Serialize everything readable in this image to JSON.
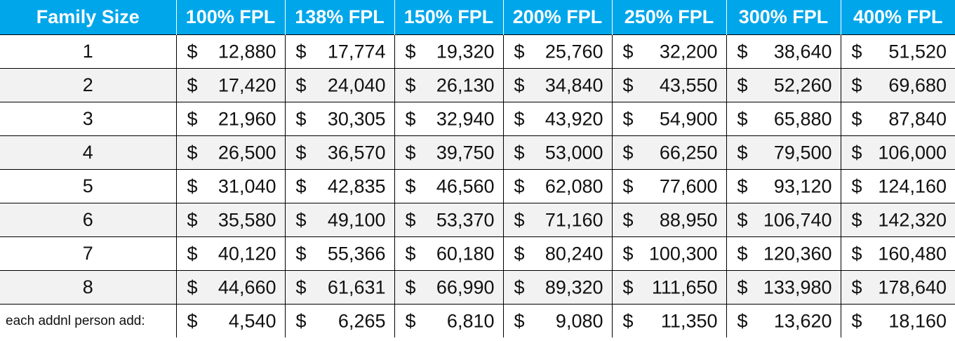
{
  "table": {
    "headers": [
      "Family Size",
      "100% FPL",
      "138% FPL",
      "150% FPL",
      "200% FPL",
      "250% FPL",
      "300% FPL",
      "400% FPL"
    ],
    "currency_symbol": "$",
    "header_bg": "#00a6ea",
    "band_bg": "#f2f2f2",
    "rows": [
      {
        "size": "1",
        "values": [
          "12,880",
          "17,774",
          "19,320",
          "25,760",
          "32,200",
          "38,640",
          "51,520"
        ]
      },
      {
        "size": "2",
        "values": [
          "17,420",
          "24,040",
          "26,130",
          "34,840",
          "43,550",
          "52,260",
          "69,680"
        ]
      },
      {
        "size": "3",
        "values": [
          "21,960",
          "30,305",
          "32,940",
          "43,920",
          "54,900",
          "65,880",
          "87,840"
        ]
      },
      {
        "size": "4",
        "values": [
          "26,500",
          "36,570",
          "39,750",
          "53,000",
          "66,250",
          "79,500",
          "106,000"
        ]
      },
      {
        "size": "5",
        "values": [
          "31,040",
          "42,835",
          "46,560",
          "62,080",
          "77,600",
          "93,120",
          "124,160"
        ]
      },
      {
        "size": "6",
        "values": [
          "35,580",
          "49,100",
          "53,370",
          "71,160",
          "88,950",
          "106,740",
          "142,320"
        ]
      },
      {
        "size": "7",
        "values": [
          "40,120",
          "55,366",
          "60,180",
          "80,240",
          "100,300",
          "120,360",
          "160,480"
        ]
      },
      {
        "size": "8",
        "values": [
          "44,660",
          "61,631",
          "66,990",
          "89,320",
          "111,650",
          "133,980",
          "178,640"
        ]
      },
      {
        "size": "each addnl person add:",
        "values": [
          "4,540",
          "6,265",
          "6,810",
          "9,080",
          "11,350",
          "13,620",
          "18,160"
        ]
      }
    ]
  }
}
